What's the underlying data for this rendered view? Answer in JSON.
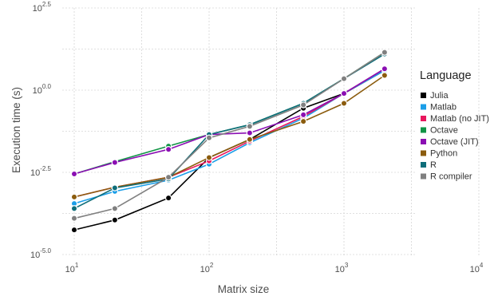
{
  "chart_data": {
    "type": "line",
    "title": "",
    "xlabel": "Matrix size",
    "ylabel": "Execution time (s)",
    "x_scale": "log10",
    "y_scale": "log10",
    "xlim": [
      10,
      10000
    ],
    "ylim": [
      1e-05,
      316.2
    ],
    "x_ticks": [
      {
        "value": 10,
        "base": "10",
        "exp": "1"
      },
      {
        "value": 100,
        "base": "10",
        "exp": "2"
      },
      {
        "value": 1000,
        "base": "10",
        "exp": "3"
      },
      {
        "value": 10000,
        "base": "10",
        "exp": "4"
      }
    ],
    "y_ticks": [
      {
        "value": 1e-05,
        "base": "10",
        "exp": "-5.0"
      },
      {
        "value": 0.003162,
        "base": "10",
        "exp": "-2.5"
      },
      {
        "value": 1,
        "base": "10",
        "exp": "0.0"
      },
      {
        "value": 316.2,
        "base": "10",
        "exp": "2.5"
      }
    ],
    "grid": true,
    "legend_title": "Language",
    "legend_position": "right",
    "x": [
      10,
      20,
      50,
      100,
      200,
      500,
      1000,
      2000
    ],
    "series": [
      {
        "name": "Julia",
        "color": "#000000",
        "values": [
          5.62e-05,
          0.000112,
          0.000525,
          0.00891,
          0.0316,
          0.282,
          0.794,
          3.981
        ]
      },
      {
        "name": "Matlab",
        "color": "#1b9ee8",
        "values": [
          0.000355,
          0.000832,
          0.00182,
          0.00562,
          0.0251,
          0.141,
          0.794,
          3.981
        ]
      },
      {
        "name": "Matlab (no JIT)",
        "color": "#e8175d",
        "values": [
          0.000562,
          0.00112,
          0.00224,
          0.00708,
          0.0282,
          0.158,
          0.794,
          4.467
        ]
      },
      {
        "name": "Octave",
        "color": "#109445",
        "values": [
          0.00282,
          0.00668,
          0.0199,
          0.0447,
          0.0891,
          0.398,
          2.239,
          14.125
        ]
      },
      {
        "name": "Octave (JIT)",
        "color": "#8b0fb3",
        "values": [
          0.00282,
          0.00631,
          0.0158,
          0.0447,
          0.0501,
          0.178,
          0.794,
          4.467
        ]
      },
      {
        "name": "Python",
        "color": "#8b5c0e",
        "values": [
          0.000562,
          0.00112,
          0.00224,
          0.00891,
          0.0316,
          0.112,
          0.398,
          2.818
        ]
      },
      {
        "name": "R",
        "color": "#0f6e7a",
        "values": [
          0.000251,
          0.00106,
          0.00199,
          0.0447,
          0.0891,
          0.398,
          2.239,
          12.589
        ]
      },
      {
        "name": "R compiler",
        "color": "#808080",
        "values": [
          0.000126,
          0.000251,
          0.00224,
          0.0354,
          0.0794,
          0.355,
          2.239,
          14.125
        ]
      }
    ]
  }
}
